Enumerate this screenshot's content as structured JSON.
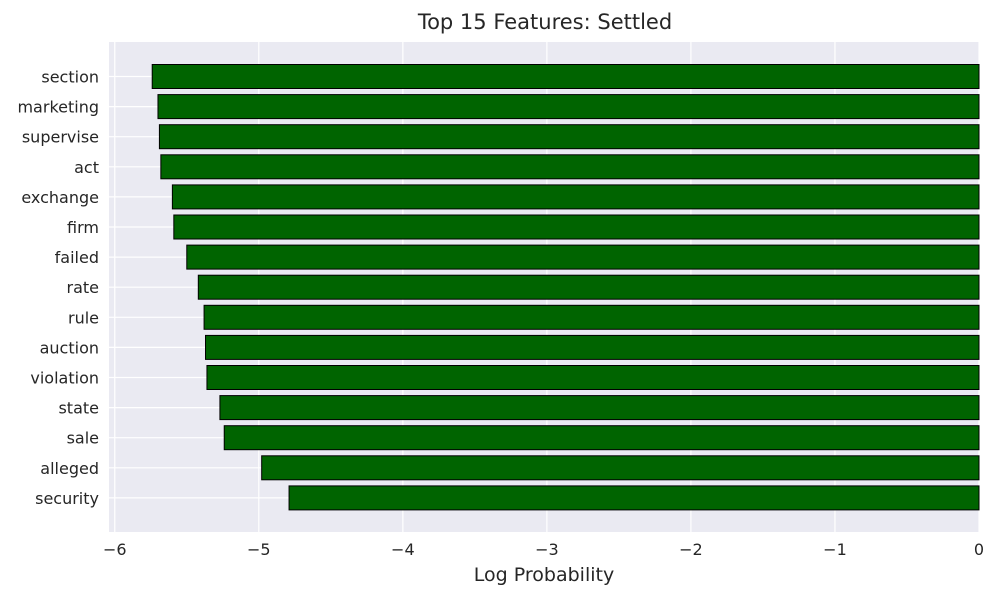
{
  "chart_data": {
    "type": "bar",
    "orientation": "horizontal",
    "title": "Top 15 Features: Settled",
    "xlabel": "Log Probability",
    "ylabel": "",
    "categories": [
      "section",
      "marketing",
      "supervise",
      "act",
      "exchange",
      "firm",
      "failed",
      "rate",
      "rule",
      "auction",
      "violation",
      "state",
      "sale",
      "alleged",
      "security"
    ],
    "values": [
      -5.74,
      -5.7,
      -5.69,
      -5.68,
      -5.6,
      -5.59,
      -5.5,
      -5.42,
      -5.38,
      -5.37,
      -5.36,
      -5.27,
      -5.24,
      -4.98,
      -4.79
    ],
    "xlim": [
      -6.04,
      0
    ],
    "xticks": [
      -6,
      -5,
      -4,
      -3,
      -2,
      -1,
      0
    ],
    "xtick_labels": [
      "−6",
      "−5",
      "−4",
      "−3",
      "−2",
      "−1",
      "0"
    ],
    "grid": true,
    "colors": {
      "bar_fill": "#006400",
      "bar_edge": "#000000",
      "plot_background": "#eaeaf2",
      "grid": "#ffffff"
    }
  }
}
